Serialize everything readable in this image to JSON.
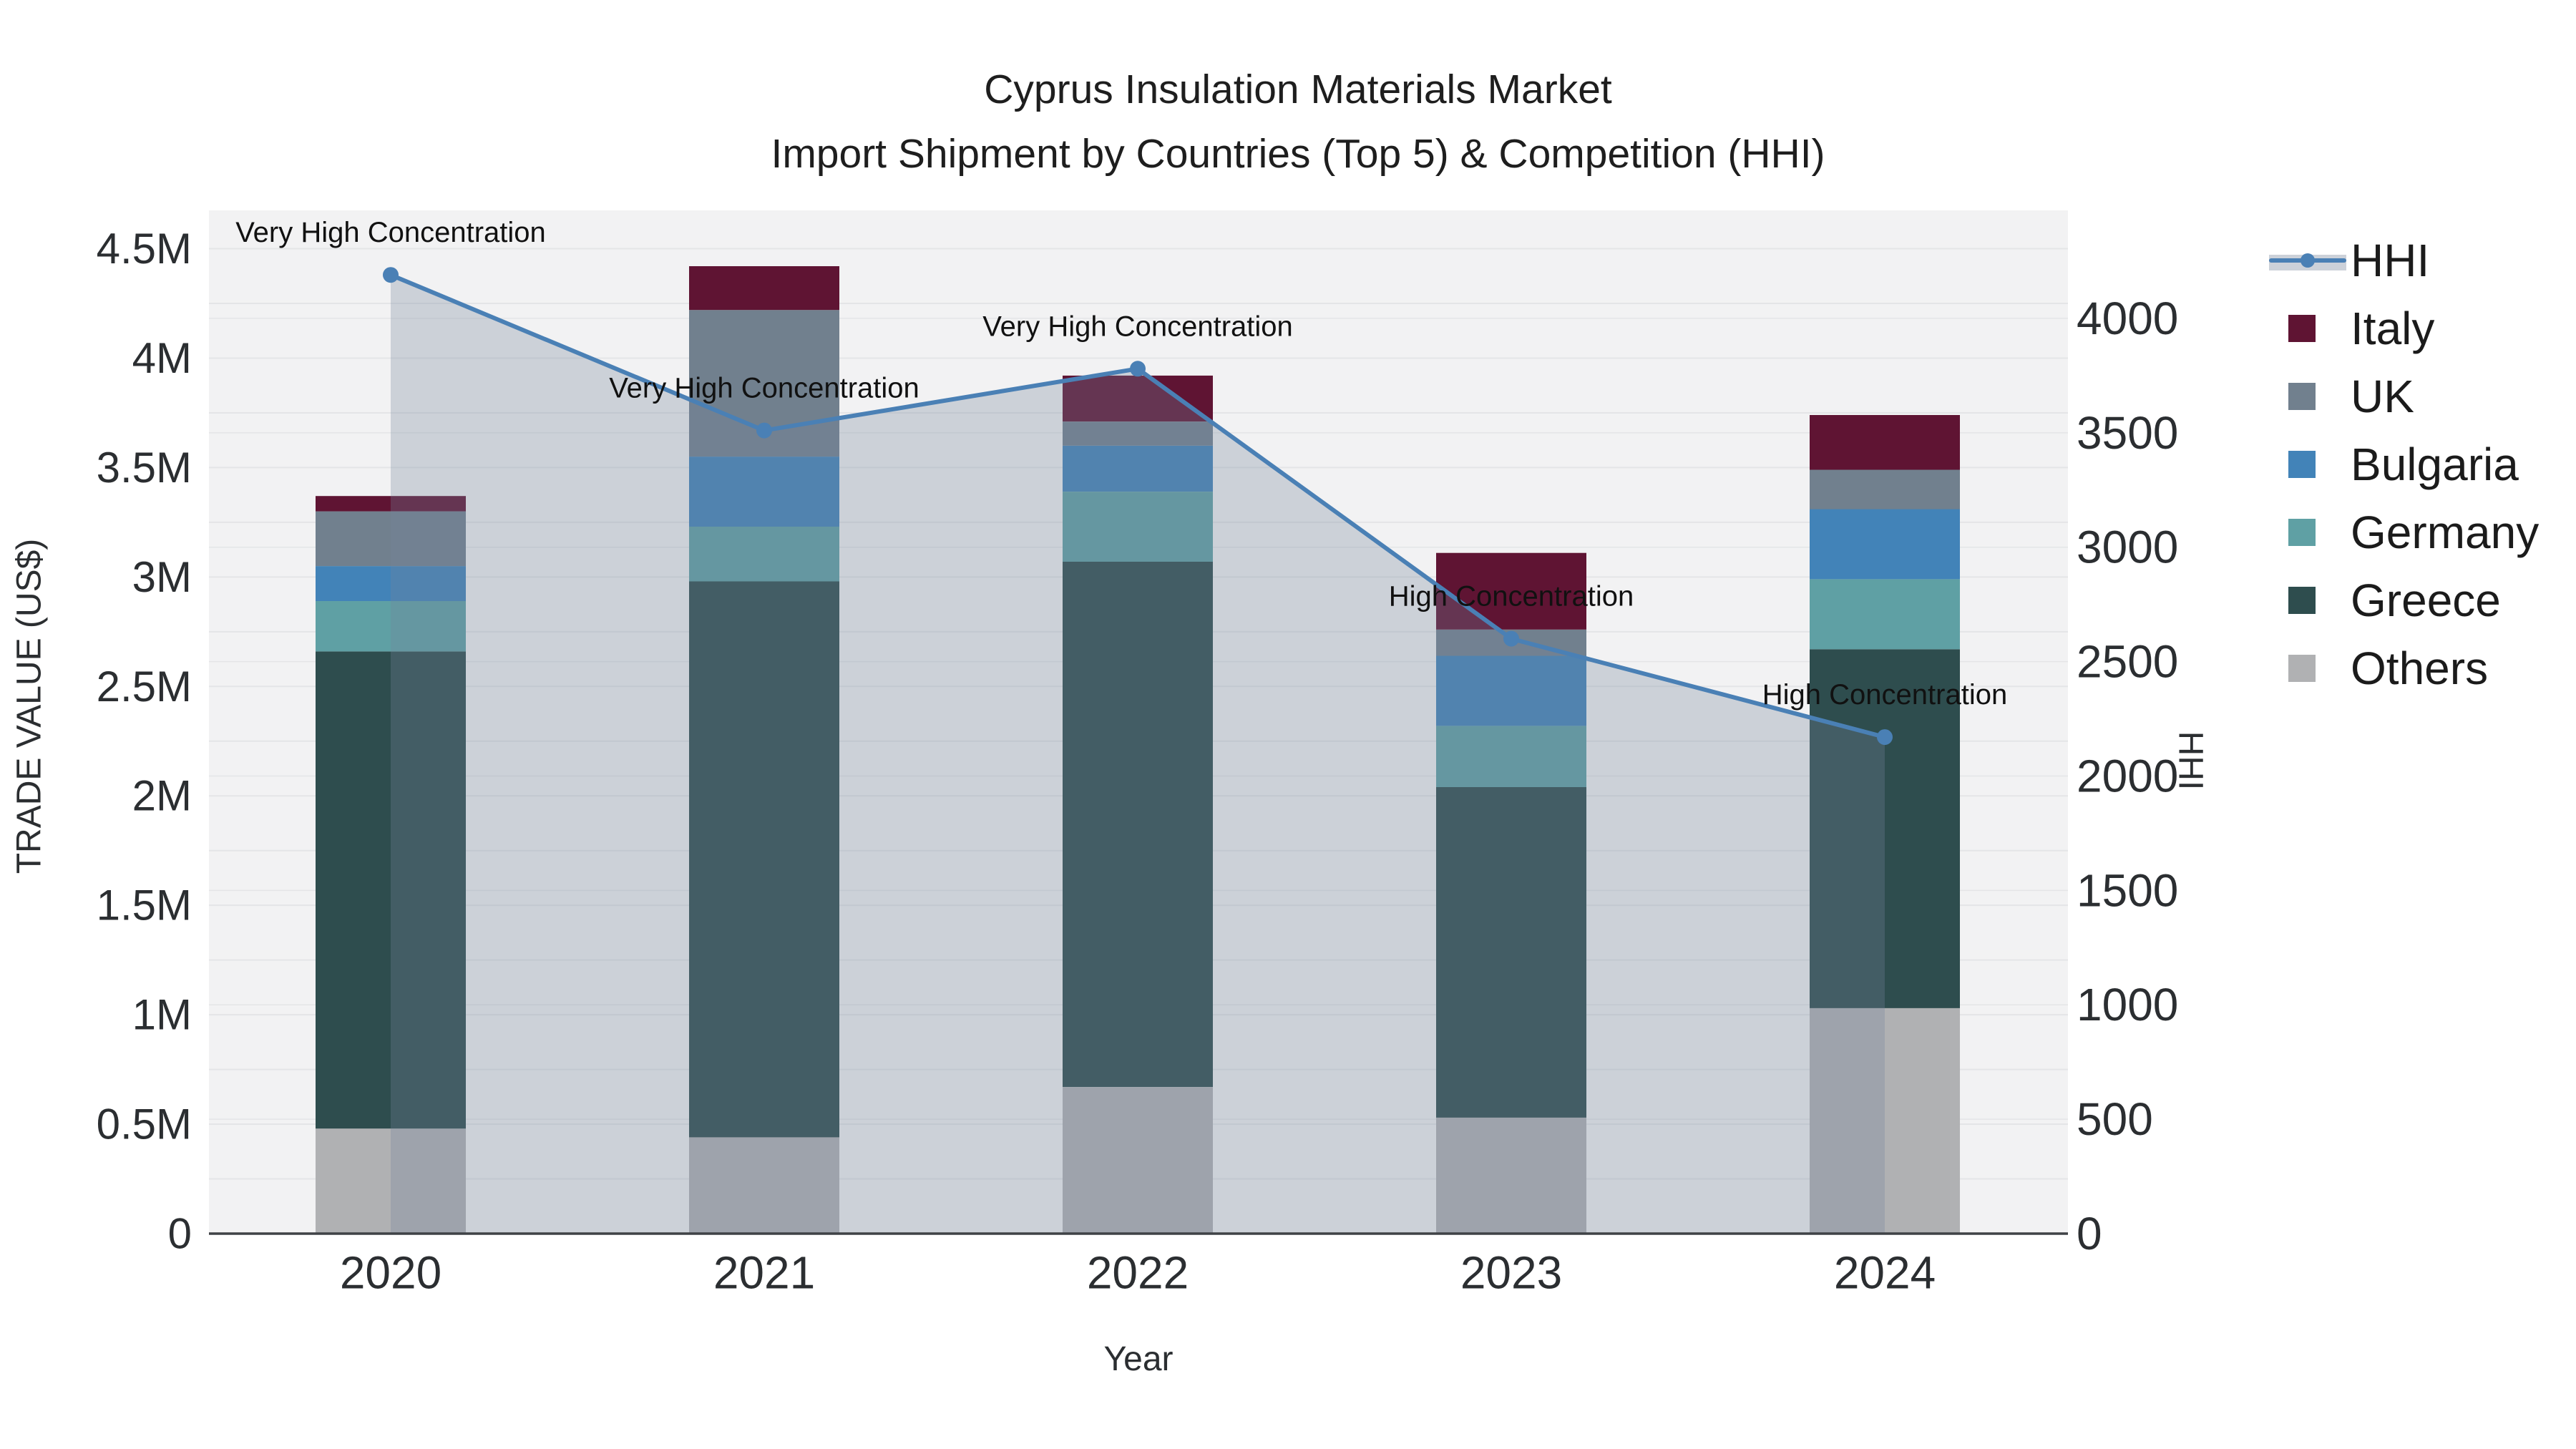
{
  "title": {
    "line1": "Cyprus Insulation Materials Market",
    "line2": "Import Shipment by Countries (Top 5) & Competition (HHI)"
  },
  "axes": {
    "x": {
      "title": "Year",
      "categories": [
        "2020",
        "2021",
        "2022",
        "2023",
        "2024"
      ]
    },
    "y_left": {
      "title": "TRADE VALUE (US$)",
      "tick_labels": [
        "0",
        "0.5M",
        "1M",
        "1.5M",
        "2M",
        "2.5M",
        "3M",
        "3.5M",
        "4M",
        "4.5M"
      ],
      "tick_values": [
        0,
        500000,
        1000000,
        1500000,
        2000000,
        2500000,
        3000000,
        3500000,
        4000000,
        4500000
      ],
      "minor_grid_step": 250000
    },
    "y_right": {
      "title": "HHI",
      "tick_labels": [
        "0",
        "500",
        "1000",
        "1500",
        "2000",
        "2500",
        "3000",
        "3500",
        "4000"
      ],
      "tick_values": [
        0,
        500,
        1000,
        1500,
        2000,
        2500,
        3000,
        3500,
        4000
      ],
      "grid_step": 500
    }
  },
  "legend": {
    "items": [
      {
        "id": "hhi",
        "label": "HHI",
        "type": "area-line",
        "color": "#4a80b5",
        "fill": "#ccd1d9"
      },
      {
        "id": "italy",
        "label": "Italy",
        "type": "swatch",
        "color": "#5f1433"
      },
      {
        "id": "uk",
        "label": "UK",
        "type": "swatch",
        "color": "#71808e"
      },
      {
        "id": "bulgaria",
        "label": "Bulgaria",
        "type": "swatch",
        "color": "#4283b8"
      },
      {
        "id": "germany",
        "label": "Germany",
        "type": "swatch",
        "color": "#5fa0a4"
      },
      {
        "id": "greece",
        "label": "Greece",
        "type": "swatch",
        "color": "#2e4d4e"
      },
      {
        "id": "others",
        "label": "Others",
        "type": "swatch",
        "color": "#b0b1b3"
      }
    ]
  },
  "chart_data": {
    "type": "bar",
    "subtype": "stacked-bars-with-hhi-area-line",
    "title": "Cyprus Insulation Materials Market — Import Shipment by Countries (Top 5) & Competition (HHI)",
    "xlabel": "Year",
    "ylabel": "TRADE VALUE (US$)",
    "ylabel_right": "HHI",
    "categories": [
      "2020",
      "2021",
      "2022",
      "2023",
      "2024"
    ],
    "series": [
      {
        "name": "Others",
        "values": [
          480000,
          440000,
          670000,
          530000,
          1030000
        ],
        "color": "#b0b1b3"
      },
      {
        "name": "Greece",
        "values": [
          2180000,
          2540000,
          2400000,
          1510000,
          1640000
        ],
        "color": "#2e4d4e"
      },
      {
        "name": "Germany",
        "values": [
          230000,
          250000,
          320000,
          280000,
          320000
        ],
        "color": "#5fa0a4"
      },
      {
        "name": "Bulgaria",
        "values": [
          160000,
          320000,
          210000,
          320000,
          320000
        ],
        "color": "#4283b8"
      },
      {
        "name": "UK",
        "values": [
          250000,
          670000,
          110000,
          120000,
          180000
        ],
        "color": "#71808e"
      },
      {
        "name": "Italy",
        "values": [
          70000,
          200000,
          210000,
          350000,
          250000
        ],
        "color": "#5f1433"
      }
    ],
    "stack_totals": [
      3370000,
      4420000,
      3920000,
      3110000,
      3740000
    ],
    "hhi_series": {
      "name": "HHI",
      "axis": "right",
      "values": [
        4190,
        3510,
        3780,
        2600,
        2170
      ],
      "line_color": "#4a80b5",
      "marker_color": "#4a80b5",
      "area_fill": "rgba(115,132,156,0.30)"
    },
    "annotations": [
      {
        "category": "2020",
        "text": "Very High Concentration"
      },
      {
        "category": "2021",
        "text": "Very High Concentration"
      },
      {
        "category": "2022",
        "text": "Very High Concentration"
      },
      {
        "category": "2023",
        "text": "High Concentration"
      },
      {
        "category": "2024",
        "text": "High Concentration"
      }
    ],
    "ylim_left": [
      0,
      4675000
    ],
    "ylim_right": [
      0,
      4472
    ],
    "grid": true,
    "legend_position": "right"
  },
  "style": {
    "plot_bg": "#f2f2f3",
    "grid_color": "#e4e5e7",
    "axis_line_color": "#3f4246",
    "tick_color": "#2b2e31",
    "annotation_color": "#111111"
  }
}
